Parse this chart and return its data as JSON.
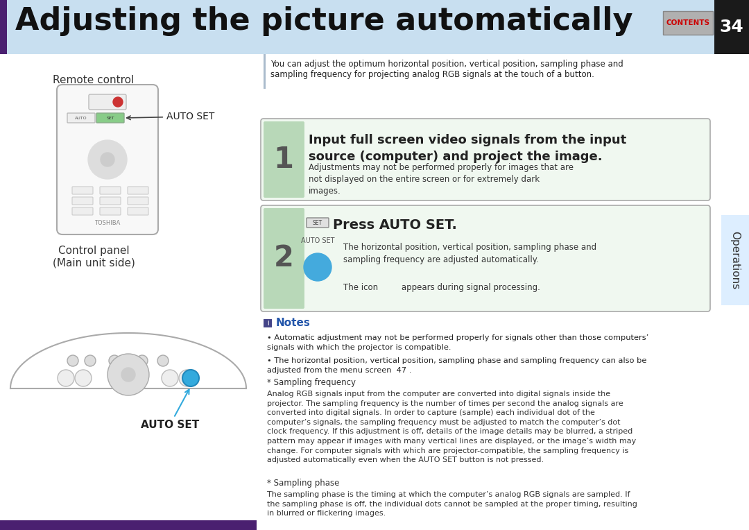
{
  "title": "Adjusting the picture automatically",
  "page_number": "34",
  "header_bg": "#c8dff0",
  "header_left_bar": "#4a2070",
  "title_font_size": 32,
  "contents_btn_color": "#a0a0a0",
  "contents_text_color": "#cc0000",
  "right_tab_bg": "#ddeeff",
  "right_tab_text": "Operations",
  "page_bg": "#ffffff",
  "intro_text": "You can adjust the optimum horizontal position, vertical position, sampling phase and\nsampling frequency for projecting analog RGB signals at the touch of a button.",
  "step1_heading": "Input full screen video signals from the input\nsource (computer) and project the image.",
  "step1_body": "Adjustments may not be performed properly for images that are\nnot displayed on the entire screen or for extremely dark\nimages.",
  "step1_bg": "#e8f4e8",
  "step2_heading": "Press AUTO SET.",
  "step2_body": "The horizontal position, vertical position, sampling phase and\nsampling frequency are adjusted automatically.",
  "step2_icon_text": "The icon         appears during signal processing.",
  "step2_bg": "#e8f4e8",
  "notes_title": "Notes",
  "note1": "Automatic adjustment may not be performed properly for signals other than those computers’\nsignals with which the projector is compatible.",
  "note2": "The horizontal position, vertical position, sampling phase and sampling frequency can also be\nadjusted from the menu screen  47 .",
  "sampling_freq_title": "* Sampling frequency",
  "sampling_freq_body": "Analog RGB signals input from the computer are converted into digital signals inside the\nprojector. The sampling frequency is the number of times per second the analog signals are\nconverted into digital signals. In order to capture (sample) each individual dot of the\ncomputer’s signals, the sampling frequency must be adjusted to match the computer’s dot\nclock frequency. If this adjustment is off, details of the image details may be blurred, a striped\npattern may appear if images with many vertical lines are displayed, or the image’s width may\nchange. For computer signals with which are projector-compatible, the sampling frequency is\nadjusted automatically even when the AUTO SET button is not pressed.",
  "sampling_phase_title": "* Sampling phase",
  "sampling_phase_body": "The sampling phase is the timing at which the computer’s analog RGB signals are sampled. If\nthe sampling phase is off, the individual dots cannot be sampled at the proper timing, resulting\nin blurred or flickering images.",
  "remote_control_label": "Remote control",
  "auto_set_label": "AUTO SET",
  "control_panel_label": "Control panel\n(Main unit side)",
  "auto_set_label2": "AUTO SET",
  "left_panel_bg": "#ffffff",
  "step_number_bg": "#7a9a7a",
  "step_box_border": "#aaaaaa",
  "bottom_bar_color": "#4a2070"
}
